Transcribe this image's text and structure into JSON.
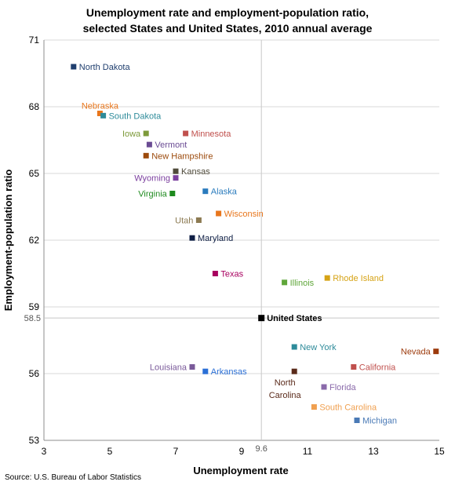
{
  "chart_data": {
    "type": "scatter",
    "title": [
      "Unemployment rate and employment-population ratio,",
      "selected States and United States, 2010 annual average"
    ],
    "xlabel": "Unemployment rate",
    "ylabel": "Employment-population ratio",
    "xlim": [
      3,
      15
    ],
    "ylim": [
      53,
      71
    ],
    "xticks": [
      "3",
      "5",
      "7",
      "9",
      "11",
      "13",
      "15"
    ],
    "yticks": [
      "53",
      "56",
      "59",
      "62",
      "65",
      "68",
      "71"
    ],
    "reference": {
      "x": 9.6,
      "y": 58.5,
      "xlabel": "9.6",
      "ylabel": "58.5"
    },
    "source": "Source: U.S. Bureau of Labor Statistics",
    "points": [
      {
        "name": "North Dakota",
        "x": 3.9,
        "y": 69.8,
        "color": "#1f3e6e",
        "anchor": "right"
      },
      {
        "name": "Nebraska",
        "x": 4.7,
        "y": 67.7,
        "color": "#e8761c",
        "anchor": "above"
      },
      {
        "name": "South Dakota",
        "x": 4.8,
        "y": 67.6,
        "color": "#2e8b9a",
        "anchor": "right"
      },
      {
        "name": "Iowa",
        "x": 6.1,
        "y": 66.8,
        "color": "#7d9a3a",
        "anchor": "left"
      },
      {
        "name": "Minnesota",
        "x": 7.3,
        "y": 66.8,
        "color": "#c0504d",
        "anchor": "right"
      },
      {
        "name": "Vermont",
        "x": 6.2,
        "y": 66.3,
        "color": "#6a4b93",
        "anchor": "right"
      },
      {
        "name": "New Hampshire",
        "x": 6.1,
        "y": 65.8,
        "color": "#9c4a0c",
        "anchor": "right"
      },
      {
        "name": "Kansas",
        "x": 7.0,
        "y": 65.1,
        "color": "#4f4a3a",
        "anchor": "right"
      },
      {
        "name": "Wyoming",
        "x": 7.0,
        "y": 64.8,
        "color": "#7b3f9e",
        "anchor": "left"
      },
      {
        "name": "Alaska",
        "x": 7.9,
        "y": 64.2,
        "color": "#2a7bbd",
        "anchor": "right"
      },
      {
        "name": "Virginia",
        "x": 6.9,
        "y": 64.1,
        "color": "#1e8a1e",
        "anchor": "left"
      },
      {
        "name": "Wisconsin",
        "x": 8.3,
        "y": 63.2,
        "color": "#e8761c",
        "anchor": "right"
      },
      {
        "name": "Utah",
        "x": 7.7,
        "y": 62.9,
        "color": "#8c7a52",
        "anchor": "left"
      },
      {
        "name": "Maryland",
        "x": 7.5,
        "y": 62.1,
        "color": "#0f1f45",
        "anchor": "right"
      },
      {
        "name": "Texas",
        "x": 8.2,
        "y": 60.5,
        "color": "#a8005f",
        "anchor": "right"
      },
      {
        "name": "Illinois",
        "x": 10.3,
        "y": 60.1,
        "color": "#5fa63a",
        "anchor": "right"
      },
      {
        "name": "Rhode Island",
        "x": 11.6,
        "y": 60.3,
        "color": "#d6a316",
        "anchor": "right"
      },
      {
        "name": "United States",
        "x": 9.6,
        "y": 58.5,
        "color": "#000000",
        "anchor": "right",
        "bold": true
      },
      {
        "name": "New York",
        "x": 10.6,
        "y": 57.2,
        "color": "#2e8b9a",
        "anchor": "right"
      },
      {
        "name": "Nevada",
        "x": 14.9,
        "y": 57.0,
        "color": "#9c3a0c",
        "anchor": "left"
      },
      {
        "name": "Louisiana",
        "x": 7.5,
        "y": 56.3,
        "color": "#7a5a9a",
        "anchor": "left"
      },
      {
        "name": "California",
        "x": 12.4,
        "y": 56.3,
        "color": "#c0504d",
        "anchor": "right"
      },
      {
        "name": "North Carolina",
        "x": 10.6,
        "y": 56.1,
        "color": "#5a2a1a",
        "anchor": "below-left",
        "lines": [
          "North",
          "Carolina"
        ]
      },
      {
        "name": "Arkansas",
        "x": 7.9,
        "y": 56.1,
        "color": "#2a6fd6",
        "anchor": "right"
      },
      {
        "name": "Florida",
        "x": 11.5,
        "y": 55.4,
        "color": "#8a6aaa",
        "anchor": "right"
      },
      {
        "name": "South Carolina",
        "x": 11.2,
        "y": 54.5,
        "color": "#f0a050",
        "anchor": "right"
      },
      {
        "name": "Michigan",
        "x": 12.5,
        "y": 53.9,
        "color": "#4a7ab6",
        "anchor": "right"
      }
    ]
  }
}
